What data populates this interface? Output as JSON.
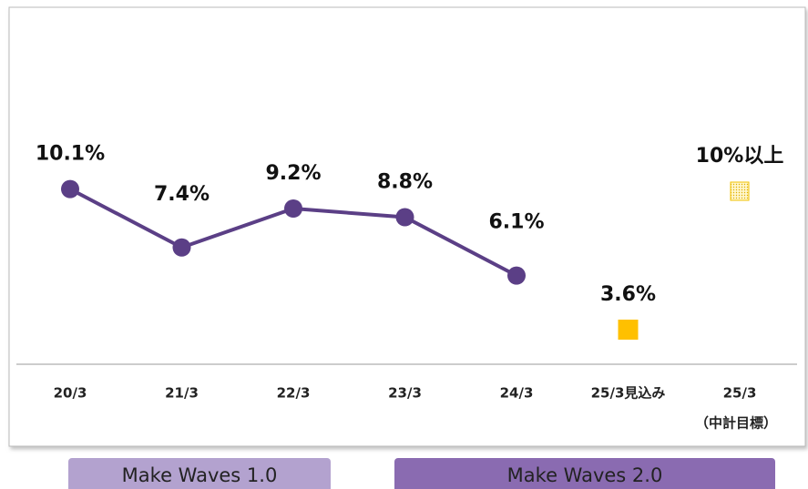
{
  "chart_data": {
    "type": "line",
    "categories": [
      "20/3",
      "21/3",
      "22/3",
      "23/3",
      "24/3",
      "25/3見込み",
      "25/3"
    ],
    "category_notes": [
      null,
      null,
      null,
      null,
      null,
      null,
      "（中計目標）"
    ],
    "series": [
      {
        "color": "#5b3f86",
        "marker": "circle",
        "values": [
          10.1,
          7.4,
          9.2,
          8.8,
          6.1,
          null,
          null
        ],
        "value_labels": [
          "10.1%",
          "7.4%",
          "9.2%",
          "8.8%",
          "6.1%",
          null,
          null
        ]
      },
      {
        "color": "#ffc000",
        "marker": "square",
        "values": [
          null,
          null,
          null,
          null,
          null,
          3.6,
          null
        ],
        "value_labels": [
          null,
          null,
          null,
          null,
          null,
          "3.6%",
          null
        ]
      },
      {
        "color": "#f2c200",
        "marker": "dotted-square",
        "values": [
          null,
          null,
          null,
          null,
          null,
          null,
          10
        ],
        "value_labels": [
          null,
          null,
          null,
          null,
          null,
          null,
          "10%以上"
        ]
      }
    ],
    "ylim": [
      2,
      12
    ],
    "phases": [
      {
        "label": "Make Waves 1.0",
        "color": "#b3a2cf"
      },
      {
        "label": "Make Waves 2.0",
        "color": "#8a6bb1"
      }
    ]
  }
}
